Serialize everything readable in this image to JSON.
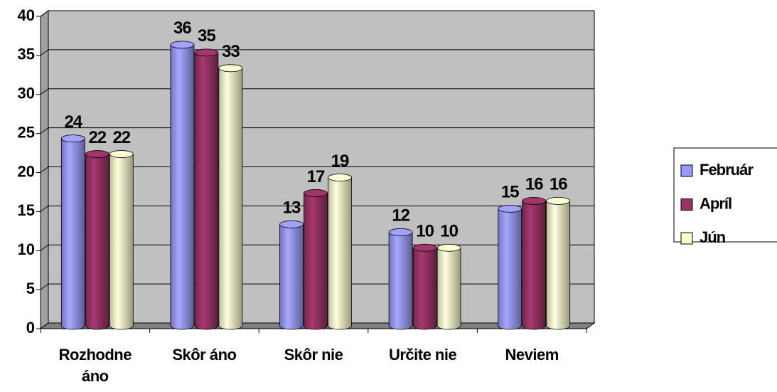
{
  "chart_data": {
    "type": "bar",
    "categories": [
      "Rozhodne áno",
      "Skôr áno",
      "Skôr nie",
      "Určite nie",
      "Neviem"
    ],
    "series": [
      {
        "name": "Február",
        "color": "#9999ff",
        "values": [
          24,
          36,
          13,
          12,
          15
        ]
      },
      {
        "name": "Apríl",
        "color": "#993366",
        "values": [
          22,
          35,
          17,
          10,
          16
        ]
      },
      {
        "name": "Jún",
        "color": "#ffffcc",
        "values": [
          22,
          33,
          19,
          10,
          16
        ]
      }
    ],
    "ylim": [
      0,
      40
    ],
    "yticks": [
      0,
      5,
      10,
      15,
      20,
      25,
      30,
      35,
      40
    ],
    "grid": true,
    "legend": "right"
  }
}
